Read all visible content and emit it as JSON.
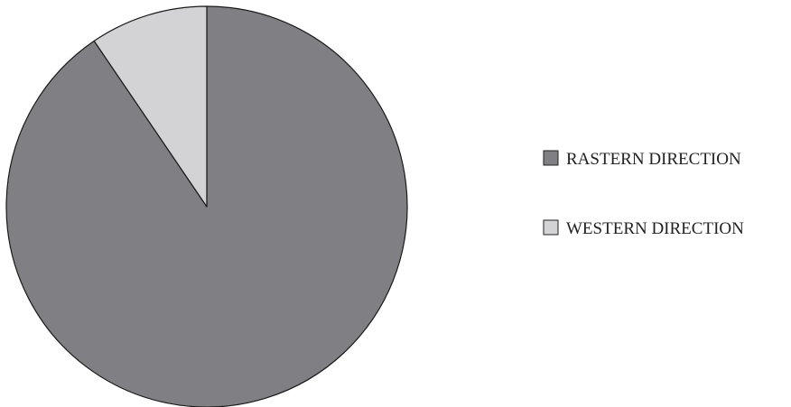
{
  "chart_data": {
    "type": "pie",
    "title": "",
    "slices": [
      {
        "label": "RASTERN DIRECTION",
        "value": 90.5,
        "color": "#808084"
      },
      {
        "label": "WESTERN DIRECTION",
        "value": 9.5,
        "color": "#d3d3d5"
      }
    ],
    "start_angle_deg": 0,
    "direction": "clockwise",
    "legend": {
      "position": "right",
      "items": [
        "RASTERN DIRECTION",
        "WESTERN DIRECTION"
      ]
    }
  }
}
